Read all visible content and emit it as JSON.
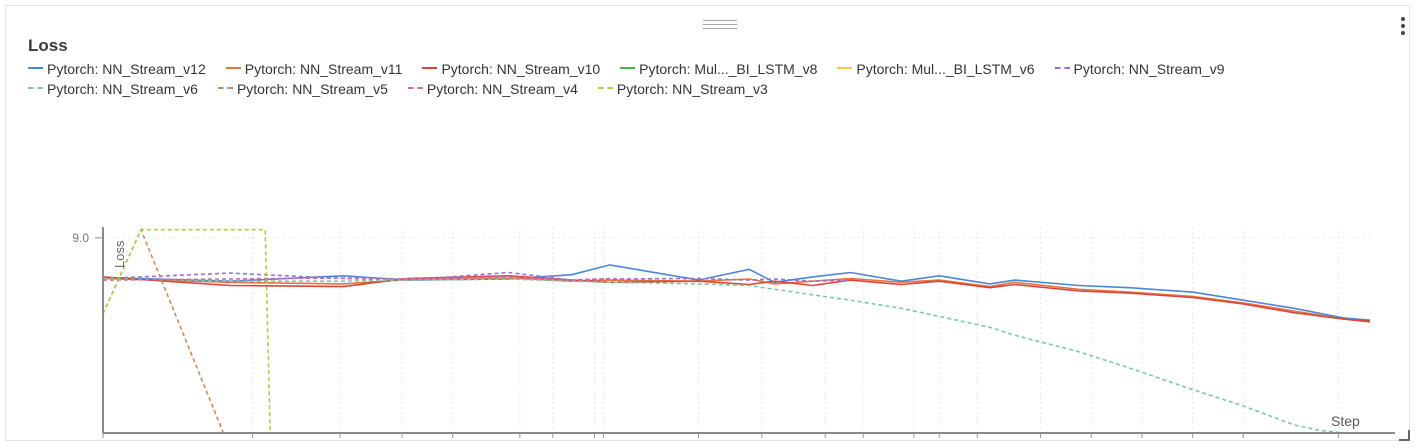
{
  "panel": {
    "title": "Loss"
  },
  "chart_data": {
    "type": "line",
    "title": "Loss",
    "xlabel": "Step",
    "ylabel": "Loss",
    "y_tick_labels": [
      "9.0"
    ],
    "ylim": [
      5.4,
      9.2
    ],
    "xlim": [
      0,
      1000
    ],
    "grid": true,
    "legend_position": "top",
    "series": [
      {
        "name": "Pytorch: NN_Stream_v12",
        "color": "#4a86d8",
        "dash": false,
        "x": [
          0,
          100,
          190,
          240,
          320,
          370,
          400,
          470,
          510,
          530,
          560,
          590,
          630,
          660,
          700,
          720,
          770,
          810,
          860,
          900,
          940,
          980,
          1000
        ],
        "y": [
          8.27,
          8.2,
          8.3,
          8.22,
          8.24,
          8.32,
          8.5,
          8.22,
          8.42,
          8.18,
          8.28,
          8.36,
          8.2,
          8.3,
          8.15,
          8.22,
          8.12,
          8.08,
          8.0,
          7.85,
          7.7,
          7.52,
          7.48
        ]
      },
      {
        "name": "Pytorch: NN_Stream_v11",
        "color": "#e8723f",
        "dash": false,
        "x": [
          0,
          100,
          190,
          240,
          320,
          370,
          400,
          470,
          510,
          530,
          560,
          590,
          630,
          660,
          700,
          720,
          770,
          810,
          860,
          900,
          940,
          980,
          1000
        ],
        "y": [
          8.25,
          8.18,
          8.15,
          8.23,
          8.26,
          8.2,
          8.22,
          8.2,
          8.24,
          8.15,
          8.2,
          8.25,
          8.18,
          8.22,
          8.1,
          8.18,
          8.05,
          8.0,
          7.92,
          7.8,
          7.65,
          7.5,
          7.45
        ]
      },
      {
        "name": "Pytorch: NN_Stream_v10",
        "color": "#d9463a",
        "dash": false,
        "x": [
          0,
          100,
          190,
          240,
          320,
          370,
          400,
          470,
          510,
          530,
          560,
          590,
          630,
          660,
          700,
          720,
          770,
          810,
          860,
          900,
          940,
          980,
          1000
        ],
        "y": [
          8.28,
          8.12,
          8.1,
          8.25,
          8.3,
          8.22,
          8.18,
          8.2,
          8.14,
          8.2,
          8.12,
          8.22,
          8.14,
          8.2,
          8.08,
          8.14,
          8.02,
          7.98,
          7.9,
          7.78,
          7.62,
          7.5,
          7.46
        ]
      },
      {
        "name": "Pytorch: Mul..._BI_LSTM_v8",
        "color": "#4caf50",
        "dash": false,
        "x": [],
        "y": []
      },
      {
        "name": "Pytorch: Mul..._BI_LSTM_v6",
        "color": "#f2c94c",
        "dash": false,
        "x": [],
        "y": []
      },
      {
        "name": "Pytorch: NN_Stream_v9",
        "color": "#9b6fd0",
        "dash": true,
        "x": [
          0,
          100,
          190,
          240,
          320,
          370,
          400,
          470,
          510,
          530,
          560,
          590
        ],
        "y": [
          8.25,
          8.35,
          8.25,
          8.22,
          8.36,
          8.22,
          8.24,
          8.25,
          8.22,
          8.24,
          8.2,
          8.22
        ]
      },
      {
        "name": "Pytorch: NN_Stream_v6",
        "color": "#7fc6a8",
        "dash": true,
        "x": [
          0,
          100,
          190,
          240,
          320,
          370,
          400,
          470,
          510,
          530,
          560,
          590,
          630,
          660,
          700,
          720,
          770,
          810,
          860,
          900,
          940,
          960,
          980
        ],
        "y": [
          8.25,
          8.2,
          8.2,
          8.22,
          8.24,
          8.2,
          8.18,
          8.15,
          8.12,
          8.05,
          7.95,
          7.85,
          7.7,
          7.55,
          7.35,
          7.2,
          6.9,
          6.6,
          6.2,
          5.9,
          5.55,
          5.45,
          5.4
        ]
      },
      {
        "name": "Pytorch: NN_Stream_v5",
        "color": "#c98a5a",
        "dash": true,
        "x": [
          0,
          30,
          95
        ],
        "y": [
          7.6,
          9.15,
          5.4
        ]
      },
      {
        "name": "Pytorch: NN_Stream_v4",
        "color": "#d06ab8",
        "dash": true,
        "x": [
          0,
          190,
          240,
          320,
          370,
          400
        ],
        "y": [
          8.22,
          8.26,
          8.24,
          8.28,
          8.22,
          8.25
        ]
      },
      {
        "name": "Pytorch: NN_Stream_v3",
        "color": "#b5c44a",
        "dash": true,
        "x": [
          0,
          30,
          128,
          132
        ],
        "y": [
          7.6,
          9.15,
          9.15,
          5.4
        ]
      }
    ]
  }
}
